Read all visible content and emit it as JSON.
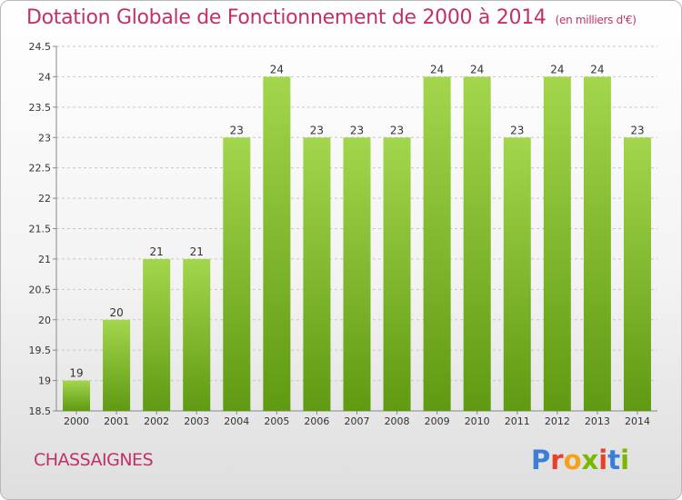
{
  "header": {
    "title": "Dotation Globale de Fonctionnement de 2000 à 2014",
    "unit": "(en milliers d'€)"
  },
  "footer": {
    "commune": "CHASSAIGNES",
    "logo_text": "Proxiti",
    "logo_colors": [
      "#3a7fd5",
      "#e8402a",
      "#f5a21b",
      "#7ab800",
      "#e8402a",
      "#3a7fd5",
      "#7ab800"
    ]
  },
  "colors": {
    "title": "#c0306a",
    "bar_light": "#a3d64c",
    "bar_dark": "#5f9a12",
    "grid": "#c8c8c8",
    "axis": "#888888"
  },
  "chart_data": {
    "type": "bar",
    "categories": [
      "2000",
      "2001",
      "2002",
      "2003",
      "2004",
      "2005",
      "2006",
      "2007",
      "2008",
      "2009",
      "2010",
      "2011",
      "2012",
      "2013",
      "2014"
    ],
    "values": [
      19,
      20,
      21,
      21,
      23,
      24,
      23,
      23,
      23,
      24,
      24,
      23,
      24,
      24,
      23
    ],
    "data_labels": [
      "19",
      "20",
      "21",
      "21",
      "23",
      "24",
      "23",
      "23",
      "23",
      "24",
      "24",
      "23",
      "24",
      "24",
      "23"
    ],
    "ylim": [
      18.5,
      24.5
    ],
    "yticks": [
      "18.5",
      "19",
      "19.5",
      "20",
      "20.5",
      "21",
      "21.5",
      "22",
      "22.5",
      "23",
      "23.5",
      "24",
      "24.5"
    ],
    "grid": true,
    "xlabel": "",
    "ylabel": ""
  }
}
